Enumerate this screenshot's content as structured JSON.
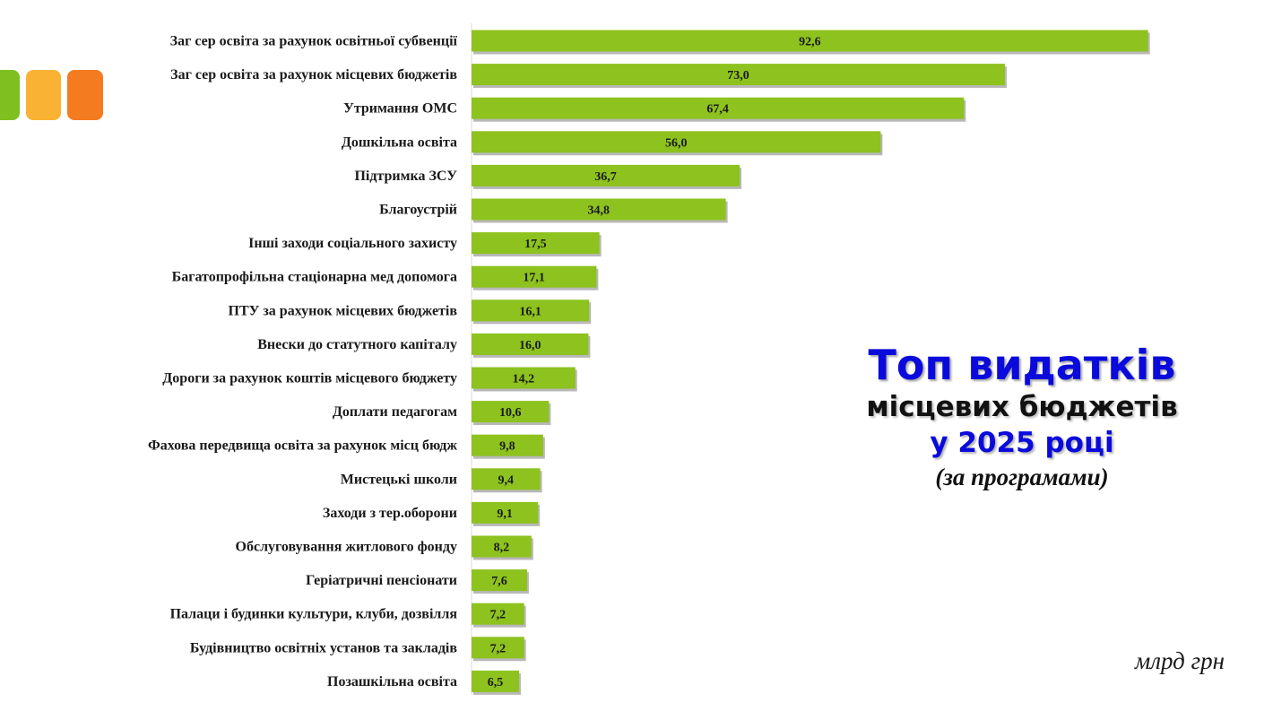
{
  "colors": {
    "bar": "#8dc21f",
    "bar_shadow": "#b8b8b8",
    "axis": "#d9d9d9",
    "decor": [
      "#7fbf1f",
      "#f9b233",
      "#f47b20"
    ],
    "title_blue": "#0a0adc"
  },
  "heading": {
    "line1": "Топ видатків",
    "line2": "місцевих бюджетів",
    "line3": "у 2025 році",
    "line4": "(за програмами)"
  },
  "unit": "млрд грн",
  "chart_data": {
    "type": "bar",
    "orientation": "horizontal",
    "title": "",
    "xlabel": "",
    "ylabel": "",
    "xlim": [
      0,
      100
    ],
    "grid": false,
    "categories": [
      "Заг сер освіта за рахунок освітньої субвенції",
      "Заг сер освіта за рахунок місцевих бюджетів",
      "Утримання ОМС",
      "Дошкільна освіта",
      "Підтримка ЗСУ",
      "Благоустрій",
      "Інші заходи соціального захисту",
      "Багатопрофільна стаціонарна мед допомога",
      "ПТУ за рахунок місцевих бюджетів",
      "Внески до статутного капіталу",
      "Дороги за рахунок коштів місцевого бюджету",
      "Доплати педагогам",
      "Фахова передвища освіта за рахунок місц бюдж",
      "Мистецькі школи",
      "Заходи з тер.оборони",
      "Обслуговування житлового фонду",
      "Геріатричні пенсіонати",
      "Палаци і будинки культури, клуби, дозвілля",
      "Будівництво освітніх установ та закладів",
      "Позашкільна освіта"
    ],
    "values": [
      92.6,
      73.0,
      67.4,
      56.0,
      36.7,
      34.8,
      17.5,
      17.1,
      16.1,
      16.0,
      14.2,
      10.6,
      9.8,
      9.4,
      9.1,
      8.2,
      7.6,
      7.2,
      7.2,
      6.5
    ],
    "value_labels": [
      "92,6",
      "73,0",
      "67,4",
      "56,0",
      "36,7",
      "34,8",
      "17,5",
      "17,1",
      "16,1",
      "16,0",
      "14,2",
      "10,6",
      "9,8",
      "9,4",
      "9,1",
      "8,2",
      "7,6",
      "7,2",
      "7,2",
      "6,5"
    ]
  }
}
